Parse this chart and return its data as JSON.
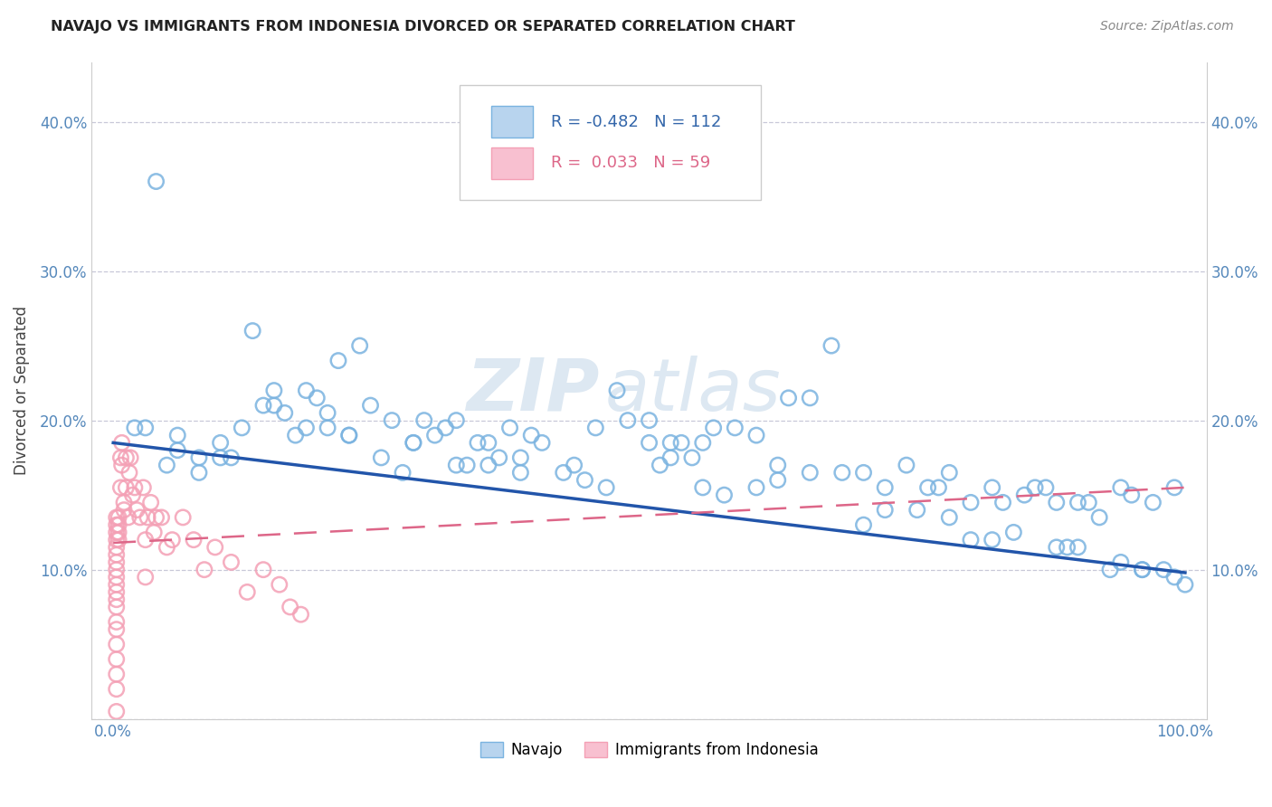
{
  "title": "NAVAJO VS IMMIGRANTS FROM INDONESIA DIVORCED OR SEPARATED CORRELATION CHART",
  "source": "Source: ZipAtlas.com",
  "ylabel": "Divorced or Separated",
  "xlim": [
    -0.02,
    1.02
  ],
  "ylim": [
    0.0,
    0.44
  ],
  "yticks": [
    0.0,
    0.1,
    0.2,
    0.3,
    0.4
  ],
  "navajo_color": "#7ab3e0",
  "navajo_edge": "#6aa0cc",
  "indonesia_color": "#f4a0b5",
  "indonesia_edge": "#e888a0",
  "navajo_line_color": "#2255aa",
  "indonesia_line_color": "#dd6688",
  "watermark_zip": "ZIP",
  "watermark_atlas": "atlas",
  "background_color": "#ffffff",
  "grid_color": "#c8c8d8",
  "tick_color": "#5588bb",
  "navajo_x": [
    0.02,
    0.04,
    0.06,
    0.08,
    0.1,
    0.11,
    0.12,
    0.13,
    0.14,
    0.15,
    0.16,
    0.17,
    0.18,
    0.19,
    0.2,
    0.21,
    0.22,
    0.23,
    0.24,
    0.25,
    0.26,
    0.27,
    0.28,
    0.29,
    0.3,
    0.31,
    0.32,
    0.33,
    0.34,
    0.35,
    0.36,
    0.37,
    0.38,
    0.39,
    0.4,
    0.42,
    0.44,
    0.45,
    0.47,
    0.48,
    0.5,
    0.51,
    0.52,
    0.53,
    0.54,
    0.55,
    0.56,
    0.57,
    0.58,
    0.6,
    0.62,
    0.63,
    0.65,
    0.67,
    0.68,
    0.7,
    0.72,
    0.74,
    0.75,
    0.76,
    0.77,
    0.78,
    0.8,
    0.82,
    0.83,
    0.84,
    0.85,
    0.86,
    0.87,
    0.88,
    0.89,
    0.9,
    0.91,
    0.92,
    0.93,
    0.94,
    0.95,
    0.96,
    0.97,
    0.98,
    0.99,
    1.0,
    0.65,
    0.5,
    0.35,
    0.2,
    0.15,
    0.1,
    0.08,
    0.06,
    0.05,
    0.03,
    0.18,
    0.22,
    0.28,
    0.32,
    0.38,
    0.43,
    0.52,
    0.6,
    0.7,
    0.8,
    0.88,
    0.94,
    0.99,
    0.72,
    0.78,
    0.82,
    0.9,
    0.96,
    0.62,
    0.55,
    0.46
  ],
  "navajo_y": [
    0.195,
    0.36,
    0.19,
    0.175,
    0.185,
    0.175,
    0.195,
    0.26,
    0.21,
    0.22,
    0.205,
    0.19,
    0.22,
    0.215,
    0.205,
    0.24,
    0.19,
    0.25,
    0.21,
    0.175,
    0.2,
    0.165,
    0.185,
    0.2,
    0.19,
    0.195,
    0.2,
    0.17,
    0.185,
    0.17,
    0.175,
    0.195,
    0.175,
    0.19,
    0.185,
    0.165,
    0.16,
    0.195,
    0.22,
    0.2,
    0.2,
    0.17,
    0.185,
    0.185,
    0.175,
    0.185,
    0.195,
    0.15,
    0.195,
    0.19,
    0.17,
    0.215,
    0.165,
    0.25,
    0.165,
    0.165,
    0.155,
    0.17,
    0.14,
    0.155,
    0.155,
    0.165,
    0.145,
    0.155,
    0.145,
    0.125,
    0.15,
    0.155,
    0.155,
    0.145,
    0.115,
    0.145,
    0.145,
    0.135,
    0.1,
    0.155,
    0.15,
    0.1,
    0.145,
    0.1,
    0.155,
    0.09,
    0.215,
    0.185,
    0.185,
    0.195,
    0.21,
    0.175,
    0.165,
    0.18,
    0.17,
    0.195,
    0.195,
    0.19,
    0.185,
    0.17,
    0.165,
    0.17,
    0.175,
    0.155,
    0.13,
    0.12,
    0.115,
    0.105,
    0.095,
    0.14,
    0.135,
    0.12,
    0.115,
    0.1,
    0.16,
    0.155,
    0.155
  ],
  "indonesia_x": [
    0.003,
    0.003,
    0.003,
    0.003,
    0.003,
    0.003,
    0.003,
    0.003,
    0.003,
    0.003,
    0.003,
    0.003,
    0.003,
    0.003,
    0.003,
    0.003,
    0.003,
    0.003,
    0.003,
    0.003,
    0.005,
    0.005,
    0.005,
    0.005,
    0.007,
    0.007,
    0.008,
    0.008,
    0.01,
    0.01,
    0.012,
    0.012,
    0.014,
    0.015,
    0.016,
    0.018,
    0.02,
    0.022,
    0.025,
    0.028,
    0.03,
    0.032,
    0.035,
    0.038,
    0.04,
    0.045,
    0.05,
    0.055,
    0.065,
    0.075,
    0.085,
    0.095,
    0.11,
    0.125,
    0.14,
    0.155,
    0.165,
    0.175,
    0.03
  ],
  "indonesia_y": [
    0.135,
    0.13,
    0.125,
    0.12,
    0.115,
    0.11,
    0.105,
    0.1,
    0.095,
    0.09,
    0.085,
    0.08,
    0.075,
    0.065,
    0.06,
    0.05,
    0.04,
    0.03,
    0.02,
    0.005,
    0.135,
    0.13,
    0.125,
    0.12,
    0.175,
    0.155,
    0.185,
    0.17,
    0.145,
    0.14,
    0.175,
    0.155,
    0.135,
    0.165,
    0.175,
    0.15,
    0.155,
    0.14,
    0.135,
    0.155,
    0.12,
    0.135,
    0.145,
    0.125,
    0.135,
    0.135,
    0.115,
    0.12,
    0.135,
    0.12,
    0.1,
    0.115,
    0.105,
    0.085,
    0.1,
    0.09,
    0.075,
    0.07,
    0.095
  ],
  "navajo_trend_x": [
    0.0,
    1.0
  ],
  "navajo_trend_y": [
    0.185,
    0.098
  ],
  "indonesia_trend_x": [
    0.0,
    1.0
  ],
  "indonesia_trend_y": [
    0.118,
    0.155
  ]
}
